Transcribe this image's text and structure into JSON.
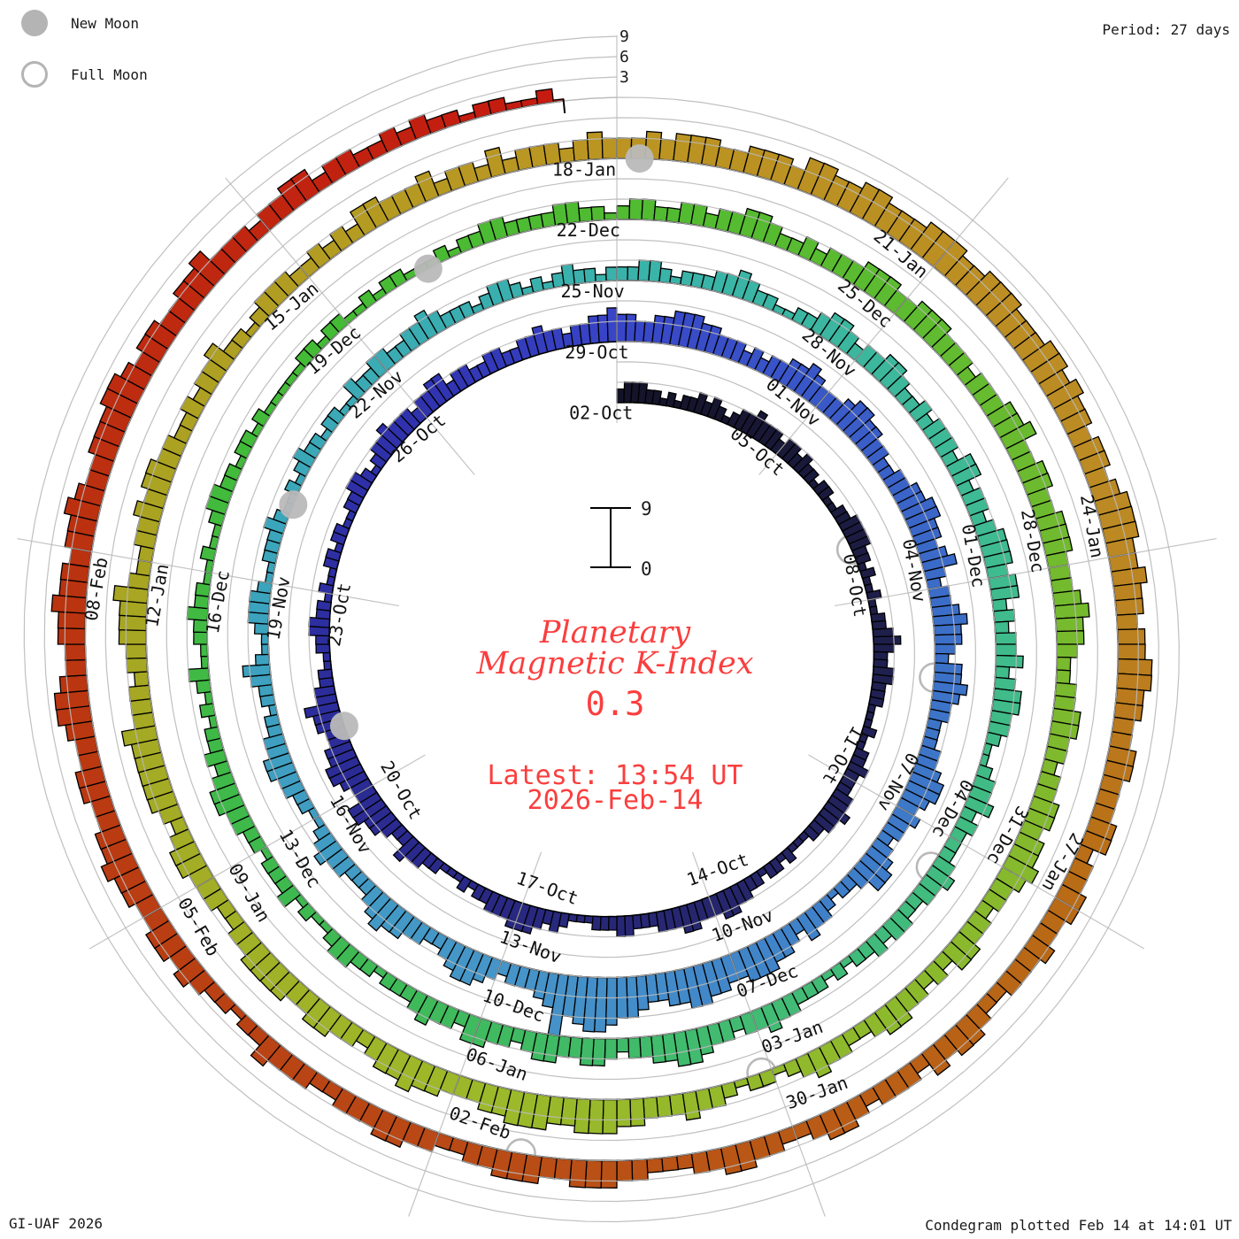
{
  "header": {
    "period_label": "Period: 27 days"
  },
  "legend": {
    "new_moon_label": "New Moon",
    "full_moon_label": "Full Moon"
  },
  "footer": {
    "credit": "GI-UAF 2026",
    "plotted": "Condegram plotted Feb 14 at 14:01 UT"
  },
  "center": {
    "title_line1": "Planetary",
    "title_line2": "Magnetic K-Index",
    "current_value": "0.3",
    "latest_line1": "Latest: 13:54 UT",
    "latest_line2": "2026-Feb-14",
    "scale_top": "9",
    "scale_bottom": "0",
    "accent_color": "#fb3e3e"
  },
  "chart_data": {
    "type": "bar",
    "subtype": "condegram-polar-spiral",
    "title": "Planetary Magnetic K-Index",
    "value_unit": "Kp index (0-9), one bar per 3 hours",
    "days_per_turn": 27,
    "bars_per_day": 8,
    "kmax": 9,
    "grid_levels": [
      3,
      6,
      9
    ],
    "outer_scale_labels": [
      "3",
      "6",
      "9"
    ],
    "grid_on": true,
    "start_date": "02-Oct-2025",
    "latest_date": "2026-Feb-14",
    "latest_time": "13:54 UT",
    "final_value": 0.3,
    "turns": [
      {
        "start_date": "02-Oct",
        "tick_labels": [
          "02-Oct",
          "05-Oct",
          "08-Oct",
          "11-Oct",
          "14-Oct",
          "17-Oct",
          "20-Oct",
          "23-Oct",
          "26-Oct"
        ],
        "values_by_day": [
          "23332212",
          "12232321",
          "23343332",
          "33232212",
          "21122333",
          "32212112",
          "11223432",
          "23322211",
          "12112232",
          "22334332",
          "21112122",
          "12233443",
          "33443332",
          "22332221",
          "11232344",
          "43332212",
          "11122334",
          "22344553",
          "34554433",
          "44533221",
          "12233221",
          "21122122",
          "11223321",
          "23343332",
          "33442332",
          "23322334",
          "33233445"
        ]
      },
      {
        "start_date": "29-Oct",
        "tick_labels": [
          "29-Oct",
          "01-Nov",
          "04-Nov",
          "07-Nov",
          "10-Nov",
          "13-Nov",
          "16-Nov",
          "19-Nov",
          "22-Nov"
        ],
        "values_by_day": [
          "44334455",
          "54433323",
          "23344543",
          "33455443",
          "32233445",
          "54434532",
          "33454432",
          "44543322",
          "23345543",
          "43323455",
          "32212334",
          "23445554",
          "45566554",
          "45667887",
          "69543332",
          "34554322",
          "33445432",
          "22334321",
          "12233443",
          "32212234",
          "21123332",
          "11222321",
          "12123221",
          "22113223",
          "32233432",
          "22123321",
          "21232212"
        ]
      },
      {
        "start_date": "25-Nov",
        "tick_labels": [
          "25-Nov",
          "28-Nov",
          "01-Dec",
          "04-Dec",
          "07-Dec",
          "10-Dec",
          "13-Dec",
          "16-Dec",
          "19-Dec"
        ],
        "values_by_day": [
          "22332122",
          "23343221",
          "12234432",
          "33443223",
          "23332442",
          "33234443",
          "44232334",
          "23443321",
          "12334232",
          "22343322",
          "33232212",
          "12223343",
          "32334554",
          "43323443",
          "34432334",
          "42334322",
          "21223321",
          "12132221",
          "22334432",
          "32212123",
          "11223221",
          "12112332",
          "21221211",
          "11122122",
          "11212211",
          "12122332",
          "22233221"
        ]
      },
      {
        "start_date": "22-Dec",
        "tick_labels": [
          "22-Dec",
          "25-Dec",
          "28-Dec",
          "31-Dec",
          "03-Jan",
          "06-Jan",
          "09-Jan",
          "12-Jan",
          "15-Jan"
        ],
        "values_by_day": [
          "23322332",
          "33443223",
          "23334443",
          "34443332",
          "33344533",
          "44334443",
          "33454432",
          "23344332",
          "33443445",
          "43323344",
          "23233443",
          "22334321",
          "22123343",
          "33445554",
          "45554433",
          "34454432",
          "33443344",
          "44332233",
          "34432344",
          "44453332",
          "33444532",
          "23343443",
          "32232334",
          "22123332",
          "23232443",
          "33423324",
          "23332343"
        ]
      },
      {
        "start_date": "18-Jan",
        "tick_labels": [
          "18-Jan",
          "21-Jan",
          "24-Jan",
          "27-Jan",
          "30-Jan",
          "02-Feb",
          "05-Feb",
          "08-Feb",
          ""
        ],
        "values_by_day": [
          "33434443",
          "34443554",
          "45544455",
          "54455544",
          "45545443",
          "44345554",
          "45443445",
          "54433443",
          "33442334",
          "43343332",
          "23443423",
          "33234432",
          "23344332",
          "22334443",
          "34443322",
          "33443332",
          "23334221",
          "22343443",
          "34454433",
          "44334554",
          "33445443",
          "44543344",
          "45543443",
          "34453332",
          "33442332",
          "23232212",
          "21122211"
        ]
      }
    ],
    "moons": {
      "new_moon_days": [
        19,
        49,
        79,
        108.2
      ],
      "full_moon_days": [
        5.1,
        34.2,
        63.4,
        93.1,
        122.3
      ],
      "marker_color": "#b9b9b9"
    },
    "colors": {
      "bar_outline": "#000000",
      "grid_color": "#b9b9b9",
      "baseline_color": "#000000",
      "label_color": "#111111",
      "gradient_stops": [
        [
          0.0,
          "#131328"
        ],
        [
          0.044,
          "#1e1e48"
        ],
        [
          0.09,
          "#26266e"
        ],
        [
          0.133,
          "#2b2b94"
        ],
        [
          0.178,
          "#3032ae"
        ],
        [
          0.2,
          "#3845c8"
        ],
        [
          0.244,
          "#3b6cc8"
        ],
        [
          0.289,
          "#4186c9"
        ],
        [
          0.311,
          "#4695c8"
        ],
        [
          0.356,
          "#3ba4bd"
        ],
        [
          0.407,
          "#3ab4a8"
        ],
        [
          0.444,
          "#3fbb90"
        ],
        [
          0.489,
          "#42bb74"
        ],
        [
          0.533,
          "#3eb94c"
        ],
        [
          0.578,
          "#44bb34"
        ],
        [
          0.622,
          "#5cbb30"
        ],
        [
          0.667,
          "#86b92d"
        ],
        [
          0.711,
          "#9cb92a"
        ],
        [
          0.756,
          "#a8a522"
        ],
        [
          0.8,
          "#bb9522"
        ],
        [
          0.844,
          "#bc8a24"
        ],
        [
          0.867,
          "#b96c16"
        ],
        [
          0.911,
          "#b94a16"
        ],
        [
          0.956,
          "#ba3310"
        ],
        [
          1.0,
          "#c51a10"
        ]
      ]
    }
  }
}
